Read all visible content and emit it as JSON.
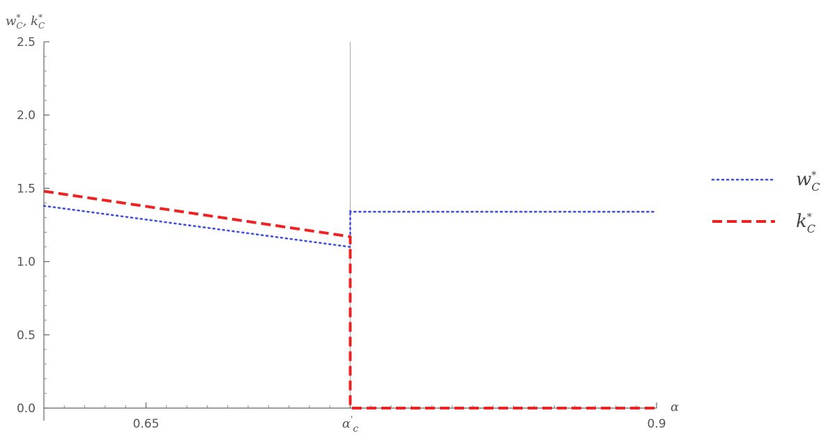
{
  "chart_data": {
    "type": "line",
    "xlabel": "α",
    "ylabel": "w*C, k*C",
    "xlim": [
      0.6,
      0.9
    ],
    "ylim": [
      0,
      2.5
    ],
    "x_ticks": [
      {
        "value": 0.65,
        "label": "0.65"
      },
      {
        "value": 0.75,
        "label": "α'c"
      },
      {
        "value": 0.9,
        "label": "0.9"
      }
    ],
    "y_ticks": [
      {
        "value": 0.0,
        "label": "0.0"
      },
      {
        "value": 0.5,
        "label": "0.5"
      },
      {
        "value": 1.0,
        "label": "1.0"
      },
      {
        "value": 1.5,
        "label": "1.5"
      },
      {
        "value": 2.0,
        "label": "2.0"
      },
      {
        "value": 2.5,
        "label": "2.5"
      }
    ],
    "vertical_line_x": 0.75,
    "grid": false,
    "legend_position": "right",
    "series": [
      {
        "name": "w*C",
        "color": "#3b4fe0",
        "style": "dotted",
        "x": [
          0.6,
          0.75,
          0.75,
          0.75,
          0.9
        ],
        "y": [
          1.38,
          1.1,
          1.35,
          1.34,
          1.34
        ]
      },
      {
        "name": "k*C",
        "color": "#ee2222",
        "style": "dashed",
        "x": [
          0.6,
          0.75,
          0.75,
          0.9
        ],
        "y": [
          1.48,
          1.17,
          0.0,
          0.0
        ]
      }
    ]
  }
}
